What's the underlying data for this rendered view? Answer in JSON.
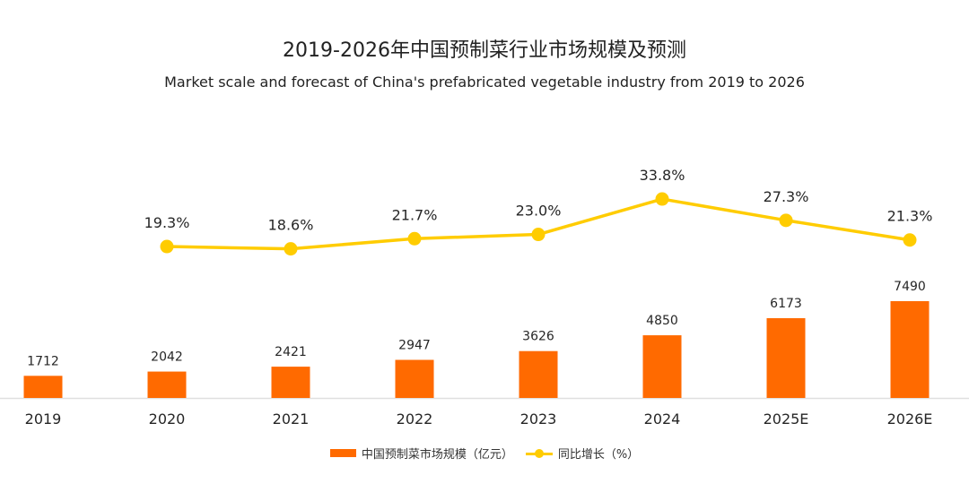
{
  "chart_data": {
    "type": "bar+line",
    "title": "2019-2026年中国预制菜行业市场规模及预测",
    "subtitle": "Market scale and forecast of China's prefabricated vegetable industry from 2019 to 2026",
    "categories": [
      "2019",
      "2020",
      "2021",
      "2022",
      "2023",
      "2024",
      "2025E",
      "2026E"
    ],
    "series": [
      {
        "name": "中国预制菜市场规模（亿元）",
        "type": "bar",
        "color": "#ff6a00",
        "values": [
          1712,
          2042,
          2421,
          2947,
          3626,
          4850,
          6173,
          7490
        ],
        "labels": [
          "1712",
          "2042",
          "2421",
          "2947",
          "3626",
          "4850",
          "6173",
          "7490"
        ]
      },
      {
        "name": "同比增长（%）",
        "type": "line",
        "color": "#ffcc00",
        "values": [
          null,
          19.3,
          18.6,
          21.7,
          23.0,
          33.8,
          27.3,
          21.3
        ],
        "labels": [
          null,
          "19.3%",
          "18.6%",
          "21.7%",
          "23.0%",
          "33.8%",
          "27.3%",
          "21.3%"
        ]
      }
    ],
    "xlabel": "",
    "ylabel": "",
    "grid": false,
    "legend": "bottom"
  }
}
